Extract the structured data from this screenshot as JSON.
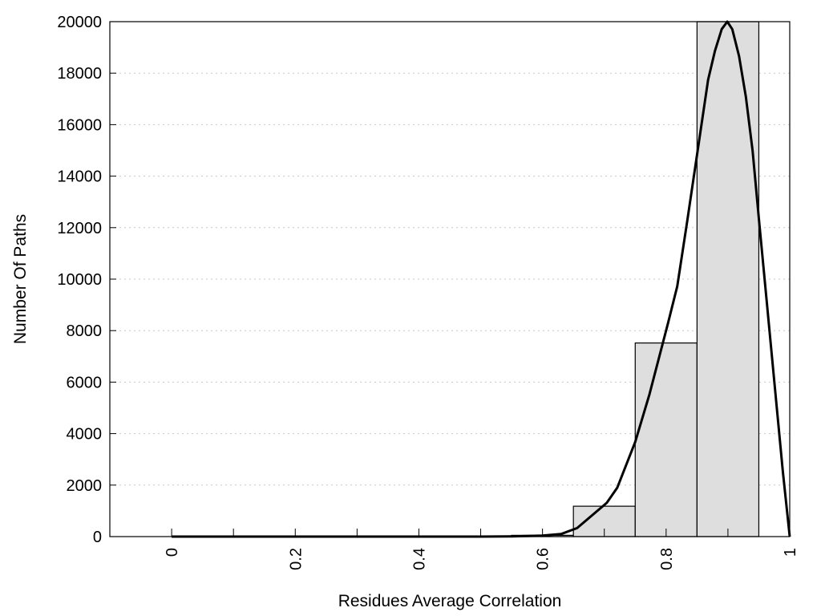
{
  "chart_data": {
    "type": "bar",
    "title": "",
    "xlabel": "Residues Average Correlation",
    "ylabel": "Number Of Paths",
    "xlim": [
      -0.1,
      1.0
    ],
    "ylim": [
      0,
      20000
    ],
    "grid": "horizontal dotted",
    "legend": "none",
    "x_ticks": [
      "0",
      "0.2",
      "0.4",
      "0.6",
      "0.8",
      "1"
    ],
    "x_tick_values": [
      0,
      0.2,
      0.4,
      0.6,
      0.8,
      1.0
    ],
    "x_minor_ticks": [
      0.1,
      0.3,
      0.5,
      0.7,
      0.9
    ],
    "y_ticks": [
      "0",
      "2000",
      "4000",
      "6000",
      "8000",
      "10000",
      "12000",
      "14000",
      "16000",
      "18000",
      "20000"
    ],
    "y_tick_values": [
      0,
      2000,
      4000,
      6000,
      8000,
      10000,
      12000,
      14000,
      16000,
      18000,
      20000
    ],
    "bar_width": 0.1,
    "bar_color": "#dedede",
    "bars": {
      "centers": [
        0,
        0.1,
        0.2,
        0.3,
        0.4,
        0.5,
        0.6,
        0.7,
        0.8,
        0.9
      ],
      "values": [
        0,
        0,
        0,
        0,
        0,
        0,
        50,
        1180,
        7520,
        20000
      ]
    },
    "fit_curve": {
      "color": "#000000",
      "x": [
        0,
        0.1,
        0.2,
        0.3,
        0.4,
        0.5,
        0.55,
        0.6,
        0.63,
        0.656,
        0.704,
        0.721,
        0.75,
        0.773,
        0.803,
        0.818,
        0.834,
        0.851,
        0.868,
        0.879,
        0.89,
        0.899,
        0.907,
        0.918,
        0.929,
        0.94,
        0.95,
        0.963,
        0.976,
        0.989,
        1.0
      ],
      "y": [
        0,
        0,
        0,
        0,
        0,
        0,
        10,
        40,
        100,
        330,
        1310,
        1900,
        3680,
        5520,
        8280,
        9720,
        12220,
        14980,
        17740,
        18860,
        19710,
        20000,
        19710,
        18660,
        17080,
        14980,
        12350,
        9070,
        5780,
        2500,
        0
      ]
    }
  }
}
